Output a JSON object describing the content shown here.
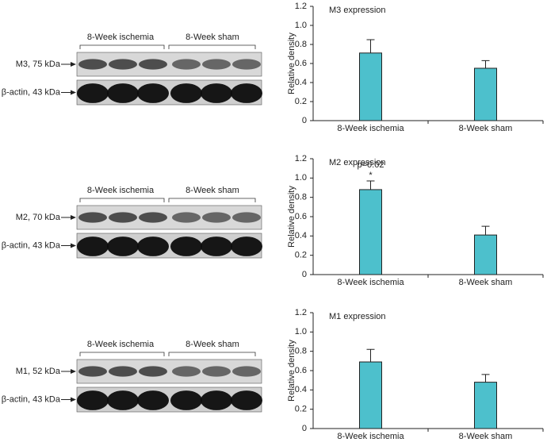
{
  "chart_data": [
    {
      "type": "bar",
      "title": "M3 expression",
      "y_label": "Relative density",
      "categories": [
        "8-Week ischemia",
        "8-Week sham"
      ],
      "values": [
        0.71,
        0.55
      ],
      "errors": [
        0.14,
        0.08
      ],
      "color": "#4dc0cc",
      "ylim": [
        0,
        1.2
      ],
      "yticks": [
        0,
        0.2,
        0.4,
        0.6,
        0.8,
        {
          "value": 1,
          "label": "1.0"
        },
        1.2
      ]
    },
    {
      "type": "bar",
      "title": "M2 expression",
      "y_label": "Relative density",
      "categories": [
        "8-Week ischemia",
        "8-Week sham"
      ],
      "values": [
        0.88,
        0.41
      ],
      "errors": [
        0.09,
        0.09
      ],
      "annotations": [
        "p=0.02",
        "*"
      ],
      "color": "#4dc0cc",
      "ylim": [
        0,
        1.2
      ],
      "yticks": [
        0,
        0.2,
        0.4,
        0.6,
        0.8,
        {
          "value": 1,
          "label": "1.0"
        },
        1.2
      ]
    },
    {
      "type": "bar",
      "title": "M1 expression",
      "y_label": "Relative density",
      "categories": [
        "8-Week ischemia",
        "8-Week sham"
      ],
      "values": [
        0.69,
        0.48
      ],
      "errors": [
        0.13,
        0.08
      ],
      "color": "#4dc0cc",
      "ylim": [
        0,
        1.2
      ],
      "yticks": [
        0,
        0.2,
        0.4,
        0.6,
        0.8,
        {
          "value": 1,
          "label": "1.0"
        },
        1.2
      ]
    }
  ],
  "blots": [
    {
      "groups": [
        "8-Week ischemia",
        "8-Week sham"
      ],
      "bands": [
        "M3, 75 kDa",
        "β-actin, 43 kDa"
      ]
    },
    {
      "groups": [
        "8-Week ischemia",
        "8-Week sham"
      ],
      "bands": [
        "M2, 70 kDa",
        "β-actin, 43 kDa"
      ]
    },
    {
      "groups": [
        "8-Week ischemia",
        "8-Week sham"
      ],
      "bands": [
        "M1, 52 kDa",
        "β-actin, 43 kDa"
      ]
    }
  ]
}
